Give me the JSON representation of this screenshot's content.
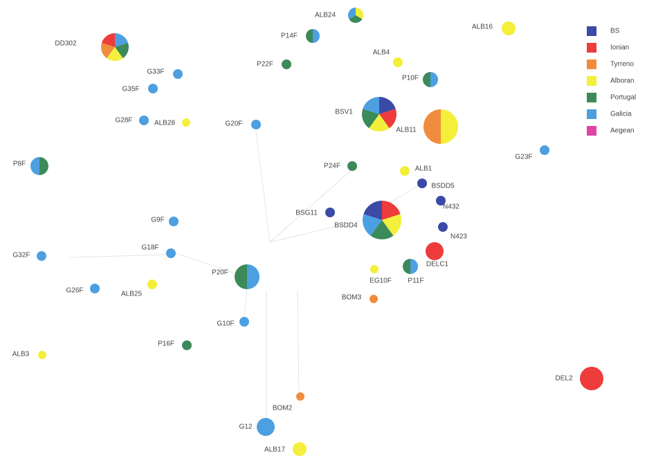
{
  "legend": [
    {
      "name": "BS",
      "color": "#3b4aa6"
    },
    {
      "name": "Ionian",
      "color": "#ee3b3b"
    },
    {
      "name": "Tyrreno",
      "color": "#f08c3e"
    },
    {
      "name": "Alboran",
      "color": "#f3ef3a"
    },
    {
      "name": "Portugal",
      "color": "#3c8a5a"
    },
    {
      "name": "Galicia",
      "color": "#4c9fe0"
    },
    {
      "name": "Aegean",
      "color": "#e043a2"
    }
  ],
  "nodes": [
    {
      "label": "DD302",
      "populations": [
        "Galicia",
        "Portugal",
        "Alboran",
        "Tyrreno",
        "Ionian"
      ]
    },
    {
      "label": "ALB24",
      "populations": [
        "Alboran",
        "Portugal",
        "Galicia"
      ]
    },
    {
      "label": "P14F",
      "populations": [
        "Galicia",
        "Portugal"
      ]
    },
    {
      "label": "ALB16",
      "populations": [
        "Alboran"
      ]
    },
    {
      "label": "ALB4",
      "populations": [
        "Alboran"
      ]
    },
    {
      "label": "P22F",
      "populations": [
        "Portugal"
      ]
    },
    {
      "label": "G33F",
      "populations": [
        "Galicia"
      ]
    },
    {
      "label": "P10F",
      "populations": [
        "Galicia",
        "Portugal"
      ]
    },
    {
      "label": "G35F",
      "populations": [
        "Galicia"
      ]
    },
    {
      "label": "BSV1",
      "populations": [
        "BS",
        "Ionian",
        "Alboran",
        "Portugal",
        "Galicia"
      ]
    },
    {
      "label": "ALB11",
      "populations": [
        "Alboran",
        "Tyrreno"
      ]
    },
    {
      "label": "G28F",
      "populations": [
        "Galicia"
      ]
    },
    {
      "label": "ALB28",
      "populations": [
        "Alboran"
      ]
    },
    {
      "label": "G20F",
      "populations": [
        "Galicia"
      ]
    },
    {
      "label": "G23F",
      "populations": [
        "Galicia"
      ]
    },
    {
      "label": "P8F",
      "populations": [
        "Portugal",
        "Galicia"
      ]
    },
    {
      "label": "P24F",
      "populations": [
        "Portugal"
      ]
    },
    {
      "label": "ALB1",
      "populations": [
        "Alboran"
      ]
    },
    {
      "label": "BSDD5",
      "populations": [
        "BS"
      ]
    },
    {
      "label": "N432",
      "populations": [
        "BS"
      ]
    },
    {
      "label": "BSG11",
      "populations": [
        "BS"
      ]
    },
    {
      "label": "BSDD4",
      "populations": [
        "Ionian",
        "Alboran",
        "Portugal",
        "Galicia",
        "BS"
      ]
    },
    {
      "label": "G9F",
      "populations": [
        "Galicia"
      ]
    },
    {
      "label": "N423",
      "populations": [
        "BS"
      ]
    },
    {
      "label": "G18F",
      "populations": [
        "Galicia"
      ]
    },
    {
      "label": "G32F",
      "populations": [
        "Galicia"
      ]
    },
    {
      "label": "DELC1",
      "populations": [
        "Ionian"
      ]
    },
    {
      "label": "EG10F",
      "populations": [
        "Alboran"
      ]
    },
    {
      "label": "P11F",
      "populations": [
        "Galicia",
        "Portugal"
      ]
    },
    {
      "label": "P20F",
      "populations": [
        "Galicia",
        "Portugal"
      ]
    },
    {
      "label": "G26F",
      "populations": [
        "Galicia"
      ]
    },
    {
      "label": "ALB25",
      "populations": [
        "Alboran"
      ]
    },
    {
      "label": "BOM3",
      "populations": [
        "Tyrreno"
      ]
    },
    {
      "label": "G10F",
      "populations": [
        "Galicia"
      ]
    },
    {
      "label": "P16F",
      "populations": [
        "Portugal"
      ]
    },
    {
      "label": "ALB3",
      "populations": [
        "Alboran"
      ]
    },
    {
      "label": "DEL2",
      "populations": [
        "Ionian"
      ]
    },
    {
      "label": "BOM2",
      "populations": [
        "Tyrreno"
      ]
    },
    {
      "label": "G12",
      "populations": [
        "Galicia"
      ]
    },
    {
      "label": "ALB17",
      "populations": [
        "Alboran"
      ]
    }
  ]
}
